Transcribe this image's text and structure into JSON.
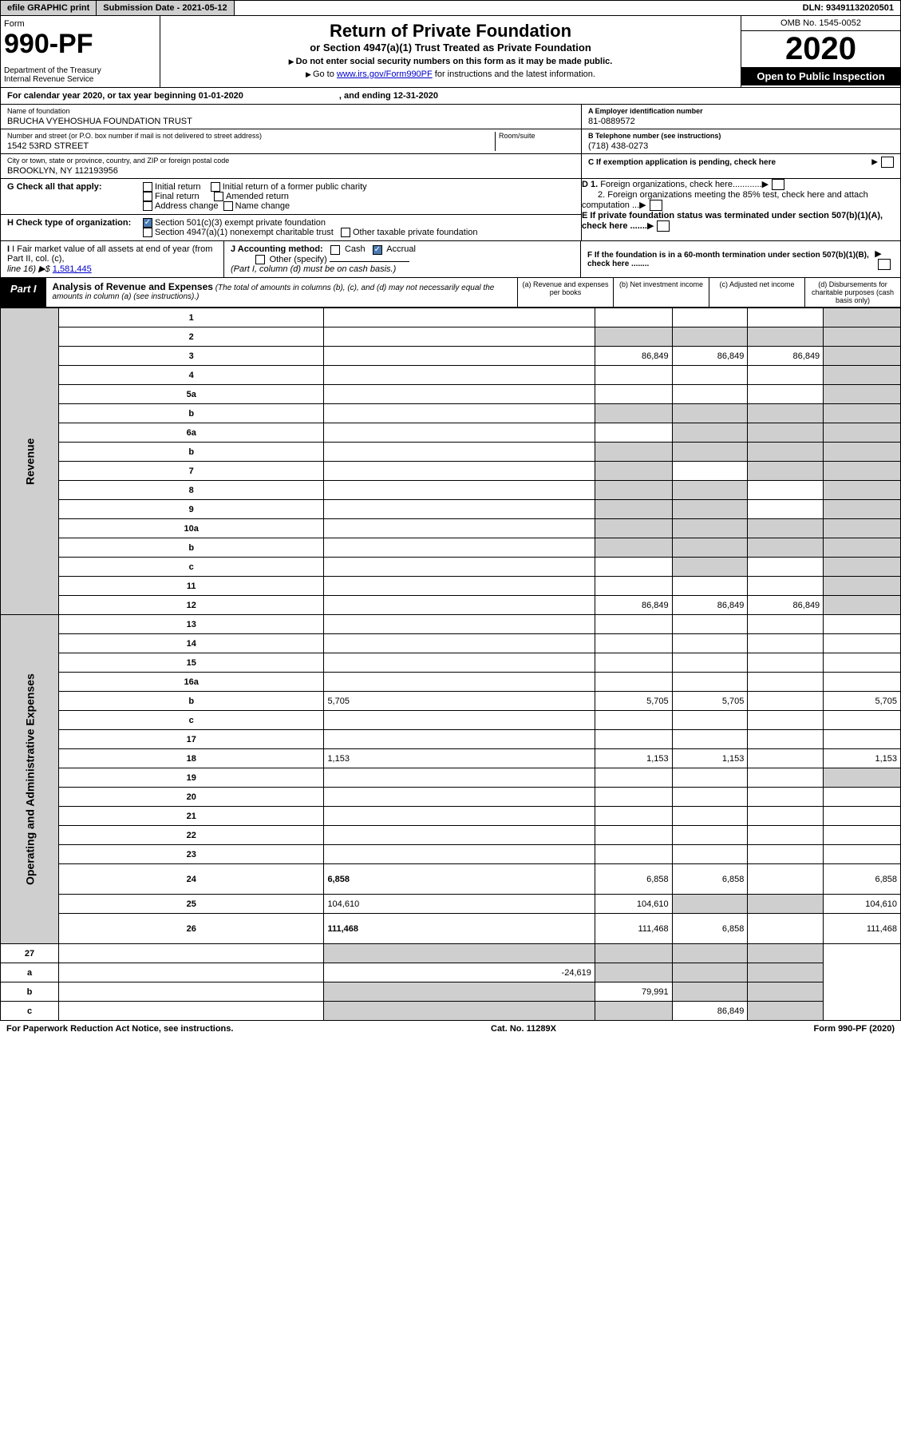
{
  "topbar": {
    "efile": "efile GRAPHIC print",
    "submission": "Submission Date - 2021-05-12",
    "dln": "DLN: 93491132020501"
  },
  "header": {
    "form": "Form",
    "number": "990-PF",
    "dept": "Department of the Treasury\nInternal Revenue Service",
    "title": "Return of Private Foundation",
    "subtitle": "or Section 4947(a)(1) Trust Treated as Private Foundation",
    "note1": "Do not enter social security numbers on this form as it may be made public.",
    "note2_pre": "Go to ",
    "note2_link": "www.irs.gov/Form990PF",
    "note2_post": " for instructions and the latest information.",
    "omb": "OMB No. 1545-0052",
    "year": "2020",
    "open": "Open to Public Inspection"
  },
  "calendar": {
    "text": "For calendar year 2020, or tax year beginning 01-01-2020",
    "ending": ", and ending 12-31-2020"
  },
  "foundation": {
    "name_label": "Name of foundation",
    "name": "BRUCHA VYEHOSHUA FOUNDATION TRUST",
    "addr_label": "Number and street (or P.O. box number if mail is not delivered to street address)",
    "room_label": "Room/suite",
    "addr": "1542 53RD STREET",
    "city_label": "City or town, state or province, country, and ZIP or foreign postal code",
    "city": "BROOKLYN, NY  112193956",
    "ein_label": "A Employer identification number",
    "ein": "81-0889572",
    "phone_label": "B Telephone number (see instructions)",
    "phone": "(718) 438-0273",
    "c_label": "C If exemption application is pending, check here",
    "d1": "D 1. Foreign organizations, check here............",
    "d2": "2. Foreign organizations meeting the 85% test, check here and attach computation ...",
    "e_label": "E  If private foundation status was terminated under section 507(b)(1)(A), check here .......",
    "f_label": "F  If the foundation is in a 60-month termination under section 507(b)(1)(B), check here ........"
  },
  "g": {
    "label": "G Check all that apply:",
    "opts": [
      "Initial return",
      "Initial return of a former public charity",
      "Final return",
      "Amended return",
      "Address change",
      "Name change"
    ]
  },
  "h": {
    "label": "H Check type of organization:",
    "opt1": "Section 501(c)(3) exempt private foundation",
    "opt2": "Section 4947(a)(1) nonexempt charitable trust",
    "opt3": "Other taxable private foundation"
  },
  "i": {
    "label": "I Fair market value of all assets at end of year (from Part II, col. (c),",
    "line16": "line 16) ▶$ ",
    "value": "1,581,445"
  },
  "j": {
    "label": "J Accounting method:",
    "cash": "Cash",
    "accrual": "Accrual",
    "other": "Other (specify)",
    "note": "(Part I, column (d) must be on cash basis.)"
  },
  "part1": {
    "label": "Part I",
    "title": "Analysis of Revenue and Expenses",
    "desc": "(The total of amounts in columns (b), (c), and (d) may not necessarily equal the amounts in column (a) (see instructions).)",
    "col_a": "(a)    Revenue and expenses per books",
    "col_b": "(b)   Net investment income",
    "col_c": "(c)   Adjusted net income",
    "col_d": "(d)   Disbursements for charitable purposes (cash basis only)"
  },
  "revenue_label": "Revenue",
  "expenses_label": "Operating and Administrative Expenses",
  "rows": [
    {
      "n": "1",
      "d": "",
      "a": "",
      "b": "",
      "c": "",
      "grayB": false,
      "grayC": false,
      "grayD": true
    },
    {
      "n": "2",
      "d": "",
      "a": "",
      "b": "",
      "c": "",
      "grayA": true,
      "grayB": true,
      "grayC": true,
      "grayD": true,
      "bold": false
    },
    {
      "n": "3",
      "d": "",
      "a": "86,849",
      "b": "86,849",
      "c": "86,849",
      "grayD": true
    },
    {
      "n": "4",
      "d": "",
      "a": "",
      "b": "",
      "c": "",
      "grayD": true
    },
    {
      "n": "5a",
      "d": "",
      "a": "",
      "b": "",
      "c": "",
      "grayD": true
    },
    {
      "n": "b",
      "d": "",
      "a": "",
      "b": "",
      "c": "",
      "grayA": true,
      "grayB": true,
      "grayC": true,
      "grayD": true
    },
    {
      "n": "6a",
      "d": "",
      "a": "",
      "b": "",
      "c": "",
      "grayB": true,
      "grayC": true,
      "grayD": true
    },
    {
      "n": "b",
      "d": "",
      "a": "",
      "b": "",
      "c": "",
      "grayA": true,
      "grayB": true,
      "grayC": true,
      "grayD": true
    },
    {
      "n": "7",
      "d": "",
      "a": "",
      "b": "",
      "c": "",
      "grayA": true,
      "grayC": true,
      "grayD": true
    },
    {
      "n": "8",
      "d": "",
      "a": "",
      "b": "",
      "c": "",
      "grayA": true,
      "grayB": true,
      "grayD": true
    },
    {
      "n": "9",
      "d": "",
      "a": "",
      "b": "",
      "c": "",
      "grayA": true,
      "grayB": true,
      "grayD": true
    },
    {
      "n": "10a",
      "d": "",
      "a": "",
      "b": "",
      "c": "",
      "grayA": true,
      "grayB": true,
      "grayC": true,
      "grayD": true
    },
    {
      "n": "b",
      "d": "",
      "a": "",
      "b": "",
      "c": "",
      "grayA": true,
      "grayB": true,
      "grayC": true,
      "grayD": true
    },
    {
      "n": "c",
      "d": "",
      "a": "",
      "b": "",
      "c": "",
      "grayB": true,
      "grayD": true
    },
    {
      "n": "11",
      "d": "",
      "a": "",
      "b": "",
      "c": "",
      "grayD": true
    },
    {
      "n": "12",
      "d": "",
      "a": "86,849",
      "b": "86,849",
      "c": "86,849",
      "bold": true,
      "grayD": true
    }
  ],
  "exp_rows": [
    {
      "n": "13",
      "d": "",
      "a": "",
      "b": "",
      "c": ""
    },
    {
      "n": "14",
      "d": "",
      "a": "",
      "b": "",
      "c": ""
    },
    {
      "n": "15",
      "d": "",
      "a": "",
      "b": "",
      "c": ""
    },
    {
      "n": "16a",
      "d": "",
      "a": "",
      "b": "",
      "c": ""
    },
    {
      "n": "b",
      "d": "5,705",
      "a": "5,705",
      "b": "5,705",
      "c": ""
    },
    {
      "n": "c",
      "d": "",
      "a": "",
      "b": "",
      "c": ""
    },
    {
      "n": "17",
      "d": "",
      "a": "",
      "b": "",
      "c": ""
    },
    {
      "n": "18",
      "d": "1,153",
      "a": "1,153",
      "b": "1,153",
      "c": ""
    },
    {
      "n": "19",
      "d": "",
      "a": "",
      "b": "",
      "c": "",
      "grayD": true
    },
    {
      "n": "20",
      "d": "",
      "a": "",
      "b": "",
      "c": ""
    },
    {
      "n": "21",
      "d": "",
      "a": "",
      "b": "",
      "c": ""
    },
    {
      "n": "22",
      "d": "",
      "a": "",
      "b": "",
      "c": ""
    },
    {
      "n": "23",
      "d": "",
      "a": "",
      "b": "",
      "c": ""
    },
    {
      "n": "24",
      "d": "6,858",
      "a": "6,858",
      "b": "6,858",
      "c": "",
      "bold": true,
      "tall": true
    },
    {
      "n": "25",
      "d": "104,610",
      "a": "104,610",
      "b": "",
      "c": "",
      "grayB": true,
      "grayC": true
    },
    {
      "n": "26",
      "d": "111,468",
      "a": "111,468",
      "b": "6,858",
      "c": "",
      "bold": true,
      "tall": true
    }
  ],
  "final_rows": [
    {
      "n": "27",
      "d": "",
      "a": "",
      "b": "",
      "c": "",
      "grayA": true,
      "grayB": true,
      "grayC": true,
      "grayD": true
    },
    {
      "n": "a",
      "d": "",
      "a": "-24,619",
      "b": "",
      "c": "",
      "bold": true,
      "grayB": true,
      "grayC": true,
      "grayD": true
    },
    {
      "n": "b",
      "d": "",
      "a": "",
      "b": "79,991",
      "c": "",
      "bold": true,
      "grayA": true,
      "grayC": true,
      "grayD": true
    },
    {
      "n": "c",
      "d": "",
      "a": "",
      "b": "",
      "c": "86,849",
      "bold": true,
      "grayA": true,
      "grayB": true,
      "grayD": true
    }
  ],
  "footer": {
    "left": "For Paperwork Reduction Act Notice, see instructions.",
    "mid": "Cat. No. 11289X",
    "right": "Form 990-PF (2020)"
  }
}
